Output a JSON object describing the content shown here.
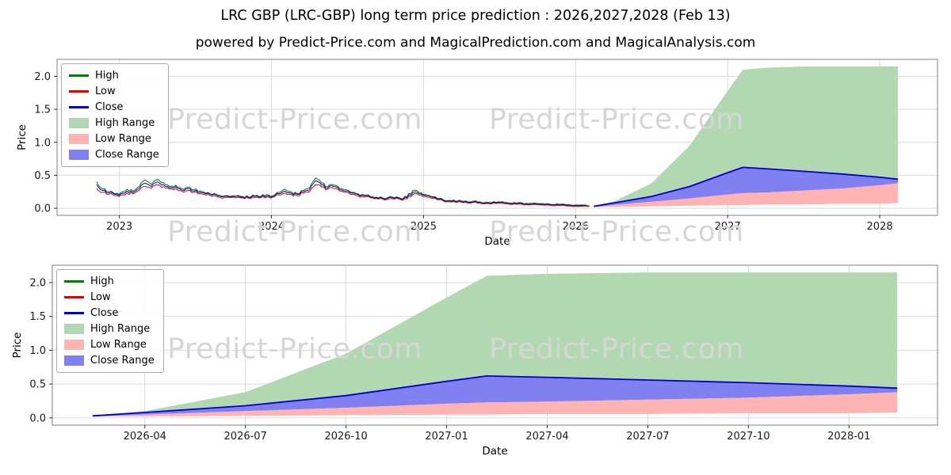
{
  "title": "LRC GBP (LRC-GBP) long term price prediction : 2026,2027,2028 (Feb 13)",
  "subtitle": "powered by Predict-Price.com and MagicalPrediction.com and MagicalAnalysis.com",
  "watermark": {
    "text": "Predict-Price.com",
    "color": "#d6d6d6"
  },
  "style": {
    "grid_color": "#d9d9d9",
    "spine_color": "#7f7f7f",
    "tick_color": "#2b2b2b",
    "tick_label_color": "#1a1a1a",
    "axis_label_color": "#000000"
  },
  "chart_data": [
    {
      "id": "top",
      "type": "line",
      "title": "",
      "xlabel": "Date",
      "ylabel": "Price",
      "xlim": [
        2022.59,
        2028.38
      ],
      "ylim": [
        -0.107,
        2.257
      ],
      "grid": true,
      "legend_position": "upper left",
      "xticks": [
        [
          2023,
          "2023"
        ],
        [
          2024,
          "2024"
        ],
        [
          2025,
          "2025"
        ],
        [
          2026,
          "2026"
        ],
        [
          2027,
          "2027"
        ],
        [
          2028,
          "2028"
        ]
      ],
      "yticks": [
        [
          0.0,
          "0.0"
        ],
        [
          0.5,
          "0.5"
        ],
        [
          1.0,
          "1.0"
        ],
        [
          1.5,
          "1.5"
        ],
        [
          2.0,
          "2.0"
        ]
      ],
      "legend": [
        {
          "label": "High",
          "swatch": "line",
          "color": "#008000"
        },
        {
          "label": "Low",
          "swatch": "line",
          "color": "#e60000"
        },
        {
          "label": "Close",
          "swatch": "line",
          "color": "#0000cd"
        },
        {
          "label": "High Range",
          "swatch": "patch",
          "color": "#b2d8b2"
        },
        {
          "label": "Low Range",
          "swatch": "patch",
          "color": "#ffb3b3"
        },
        {
          "label": "Close Range",
          "swatch": "patch",
          "color": "#8080f0"
        }
      ],
      "areas": [
        {
          "name": "high-range",
          "color": "#b2d8b2",
          "x": [
            2026.12,
            2026.25,
            2026.5,
            2026.75,
            2027.0,
            2027.1,
            2027.25,
            2027.5,
            2027.75,
            2028.0,
            2028.12
          ],
          "top": [
            0.03,
            0.1,
            0.38,
            0.95,
            1.78,
            2.1,
            2.13,
            2.15,
            2.15,
            2.15,
            2.15
          ],
          "bottom": [
            0.02,
            0.02,
            0.03,
            0.04,
            0.05,
            0.05,
            0.06,
            0.06,
            0.07,
            0.07,
            0.08
          ]
        },
        {
          "name": "close-range",
          "color": "#8080f0",
          "x": [
            2026.12,
            2026.25,
            2026.5,
            2026.75,
            2027.0,
            2027.1,
            2027.25,
            2027.5,
            2027.75,
            2028.0,
            2028.12
          ],
          "top": [
            0.03,
            0.08,
            0.18,
            0.33,
            0.54,
            0.62,
            0.6,
            0.56,
            0.52,
            0.47,
            0.44
          ],
          "bottom": [
            0.02,
            0.05,
            0.1,
            0.15,
            0.21,
            0.23,
            0.24,
            0.27,
            0.3,
            0.35,
            0.38
          ]
        },
        {
          "name": "low-range",
          "color": "#ffb3b3",
          "x": [
            2026.12,
            2026.25,
            2026.5,
            2026.75,
            2027.0,
            2027.1,
            2027.25,
            2027.5,
            2027.75,
            2028.0,
            2028.12
          ],
          "top": [
            0.02,
            0.05,
            0.1,
            0.15,
            0.21,
            0.23,
            0.24,
            0.27,
            0.3,
            0.35,
            0.38
          ],
          "bottom": [
            0.02,
            0.02,
            0.03,
            0.04,
            0.05,
            0.05,
            0.06,
            0.06,
            0.07,
            0.07,
            0.08
          ]
        }
      ],
      "lines": [
        {
          "name": "high-history",
          "color": "#008000",
          "width": 1,
          "noise": 0.022,
          "x_start": 2022.85,
          "x_step": 0.04,
          "y": [
            0.4,
            0.29,
            0.25,
            0.22,
            0.24,
            0.29,
            0.26,
            0.33,
            0.43,
            0.36,
            0.44,
            0.39,
            0.33,
            0.35,
            0.3,
            0.32,
            0.28,
            0.26,
            0.23,
            0.21,
            0.2,
            0.19,
            0.18,
            0.19,
            0.18,
            0.17,
            0.19,
            0.18,
            0.21,
            0.19,
            0.24,
            0.29,
            0.25,
            0.22,
            0.27,
            0.31,
            0.46,
            0.38,
            0.33,
            0.35,
            0.3,
            0.28,
            0.24,
            0.22,
            0.2,
            0.18,
            0.17,
            0.16,
            0.17,
            0.16,
            0.15,
            0.17,
            0.27,
            0.24,
            0.21,
            0.18,
            0.15,
            0.13,
            0.12,
            0.11,
            0.11,
            0.1,
            0.11,
            0.1,
            0.09,
            0.09,
            0.1,
            0.09,
            0.08,
            0.08,
            0.08,
            0.07,
            0.08,
            0.07,
            0.07,
            0.06,
            0.06,
            0.06,
            0.05,
            0.05,
            0.05,
            0.04
          ]
        },
        {
          "name": "close-history",
          "color": "#0000cd",
          "width": 1,
          "noise": 0.022,
          "x_start": 2022.85,
          "x_step": 0.04,
          "y": [
            0.36,
            0.27,
            0.23,
            0.21,
            0.22,
            0.26,
            0.24,
            0.3,
            0.38,
            0.33,
            0.4,
            0.36,
            0.31,
            0.33,
            0.28,
            0.3,
            0.26,
            0.24,
            0.22,
            0.2,
            0.19,
            0.18,
            0.17,
            0.18,
            0.17,
            0.16,
            0.18,
            0.17,
            0.19,
            0.18,
            0.22,
            0.26,
            0.23,
            0.21,
            0.25,
            0.28,
            0.42,
            0.35,
            0.31,
            0.33,
            0.28,
            0.26,
            0.23,
            0.21,
            0.19,
            0.17,
            0.16,
            0.15,
            0.16,
            0.15,
            0.14,
            0.16,
            0.24,
            0.22,
            0.2,
            0.17,
            0.14,
            0.12,
            0.11,
            0.1,
            0.1,
            0.09,
            0.1,
            0.09,
            0.08,
            0.08,
            0.09,
            0.08,
            0.07,
            0.07,
            0.07,
            0.06,
            0.07,
            0.06,
            0.06,
            0.05,
            0.05,
            0.05,
            0.04,
            0.04,
            0.04,
            0.03
          ]
        },
        {
          "name": "low-history",
          "color": "#e60000",
          "width": 1,
          "noise": 0.022,
          "x_start": 2022.85,
          "x_step": 0.04,
          "y": [
            0.3,
            0.24,
            0.21,
            0.19,
            0.2,
            0.23,
            0.22,
            0.27,
            0.33,
            0.3,
            0.36,
            0.33,
            0.29,
            0.3,
            0.26,
            0.27,
            0.24,
            0.22,
            0.2,
            0.18,
            0.17,
            0.16,
            0.16,
            0.16,
            0.16,
            0.15,
            0.16,
            0.16,
            0.17,
            0.17,
            0.2,
            0.23,
            0.21,
            0.19,
            0.23,
            0.25,
            0.36,
            0.32,
            0.29,
            0.3,
            0.26,
            0.24,
            0.21,
            0.19,
            0.17,
            0.16,
            0.15,
            0.14,
            0.14,
            0.14,
            0.13,
            0.14,
            0.21,
            0.2,
            0.18,
            0.15,
            0.13,
            0.11,
            0.1,
            0.09,
            0.09,
            0.08,
            0.09,
            0.08,
            0.07,
            0.07,
            0.08,
            0.07,
            0.06,
            0.06,
            0.06,
            0.05,
            0.06,
            0.05,
            0.05,
            0.04,
            0.04,
            0.04,
            0.03,
            0.03,
            0.03,
            0.03
          ]
        },
        {
          "name": "close-prediction",
          "color": "#0000cd",
          "width": 1.8,
          "x": [
            2026.12,
            2026.25,
            2026.5,
            2026.75,
            2027.0,
            2027.1,
            2027.25,
            2027.5,
            2027.75,
            2028.0,
            2028.12
          ],
          "y": [
            0.03,
            0.08,
            0.18,
            0.33,
            0.54,
            0.62,
            0.6,
            0.56,
            0.52,
            0.47,
            0.44
          ]
        }
      ]
    },
    {
      "id": "bottom",
      "type": "line",
      "title": "",
      "xlabel": "Date",
      "ylabel": "Price",
      "xlim": [
        2026.02,
        2028.22
      ],
      "ylim": [
        -0.107,
        2.257
      ],
      "grid": true,
      "legend_position": "upper left",
      "xticks": [
        [
          2026.25,
          "2026-04"
        ],
        [
          2026.5,
          "2026-07"
        ],
        [
          2026.75,
          "2026-10"
        ],
        [
          2027.0,
          "2027-01"
        ],
        [
          2027.25,
          "2027-04"
        ],
        [
          2027.5,
          "2027-07"
        ],
        [
          2027.75,
          "2027-10"
        ],
        [
          2028.0,
          "2028-01"
        ]
      ],
      "yticks": [
        [
          0.0,
          "0.0"
        ],
        [
          0.5,
          "0.5"
        ],
        [
          1.0,
          "1.0"
        ],
        [
          1.5,
          "1.5"
        ],
        [
          2.0,
          "2.0"
        ]
      ],
      "legend": [
        {
          "label": "High",
          "swatch": "line",
          "color": "#008000"
        },
        {
          "label": "Low",
          "swatch": "line",
          "color": "#e60000"
        },
        {
          "label": "Close",
          "swatch": "line",
          "color": "#0000cd"
        },
        {
          "label": "High Range",
          "swatch": "patch",
          "color": "#b2d8b2"
        },
        {
          "label": "Low Range",
          "swatch": "patch",
          "color": "#ffb3b3"
        },
        {
          "label": "Close Range",
          "swatch": "patch",
          "color": "#8080f0"
        }
      ],
      "areas": [
        {
          "name": "high-range",
          "color": "#b2d8b2",
          "x": [
            2026.12,
            2026.25,
            2026.5,
            2026.75,
            2027.0,
            2027.1,
            2027.25,
            2027.5,
            2027.75,
            2028.0,
            2028.12
          ],
          "top": [
            0.03,
            0.1,
            0.38,
            0.95,
            1.78,
            2.1,
            2.13,
            2.15,
            2.15,
            2.15,
            2.15
          ],
          "bottom": [
            0.02,
            0.02,
            0.03,
            0.04,
            0.05,
            0.05,
            0.06,
            0.06,
            0.07,
            0.07,
            0.08
          ]
        },
        {
          "name": "close-range",
          "color": "#8080f0",
          "x": [
            2026.12,
            2026.25,
            2026.5,
            2026.75,
            2027.0,
            2027.1,
            2027.25,
            2027.5,
            2027.75,
            2028.0,
            2028.12
          ],
          "top": [
            0.03,
            0.08,
            0.18,
            0.33,
            0.54,
            0.62,
            0.6,
            0.56,
            0.52,
            0.47,
            0.44
          ],
          "bottom": [
            0.02,
            0.05,
            0.1,
            0.15,
            0.21,
            0.23,
            0.24,
            0.27,
            0.3,
            0.35,
            0.38
          ]
        },
        {
          "name": "low-range",
          "color": "#ffb3b3",
          "x": [
            2026.12,
            2026.25,
            2026.5,
            2026.75,
            2027.0,
            2027.1,
            2027.25,
            2027.5,
            2027.75,
            2028.0,
            2028.12
          ],
          "top": [
            0.02,
            0.05,
            0.1,
            0.15,
            0.21,
            0.23,
            0.24,
            0.27,
            0.3,
            0.35,
            0.38
          ],
          "bottom": [
            0.02,
            0.02,
            0.03,
            0.04,
            0.05,
            0.05,
            0.06,
            0.06,
            0.07,
            0.07,
            0.08
          ]
        }
      ],
      "lines": [
        {
          "name": "close-prediction",
          "color": "#0000cd",
          "width": 1.8,
          "x": [
            2026.12,
            2026.25,
            2026.5,
            2026.75,
            2027.0,
            2027.1,
            2027.25,
            2027.5,
            2027.75,
            2028.0,
            2028.12
          ],
          "y": [
            0.03,
            0.08,
            0.18,
            0.33,
            0.54,
            0.62,
            0.6,
            0.56,
            0.52,
            0.47,
            0.44
          ]
        }
      ]
    }
  ]
}
